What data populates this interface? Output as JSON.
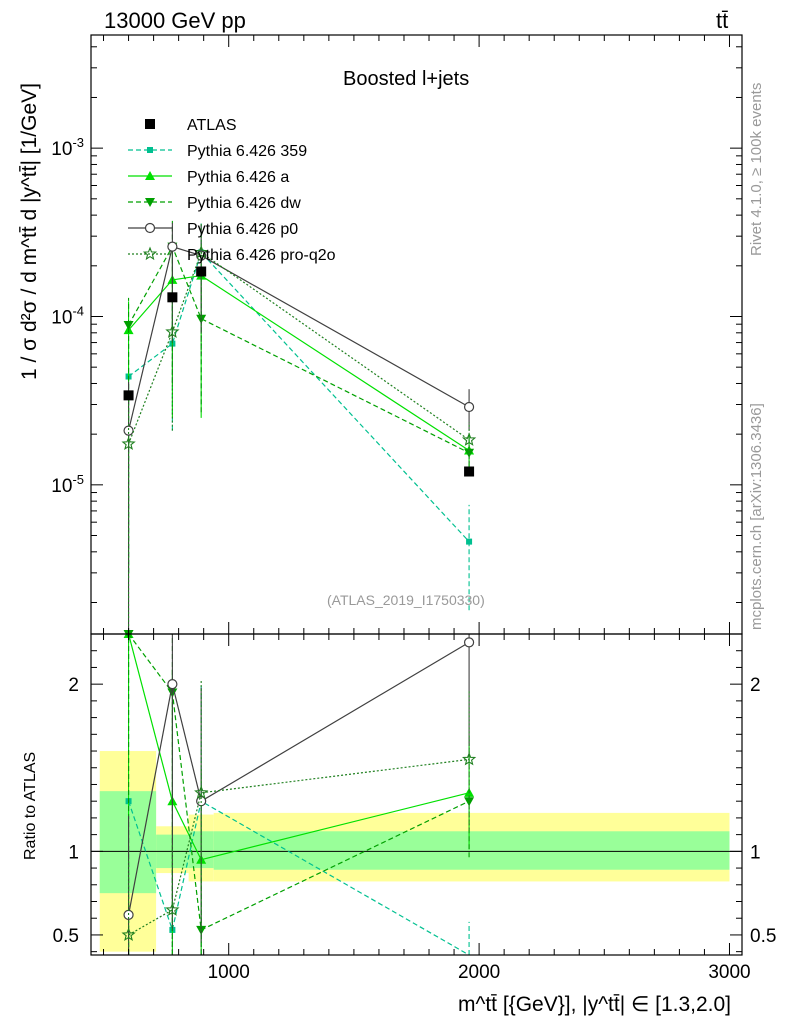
{
  "header": {
    "left": "13000 GeV pp",
    "right": "tt̄"
  },
  "side_labels": {
    "rivet": "Rivet 4.1.0, ≥ 100k events",
    "mcplots": "mcplots.cern.ch [arXiv:1306.3436]"
  },
  "chart_data": {
    "type": "scatter",
    "title": "Boosted l+jets",
    "analysis_id": "(ATLAS_2019_I1750330)",
    "xlabel": "m^tt̄ [{GeV}], |y^tt̄| ∈ [1.3,2.0]",
    "ylabel": "1 / σ d²σ / d m^tt̄ d |y^tt̄| [1/GeV]",
    "ratio_ylabel": "Ratio to ATLAS",
    "x_scale": "linear",
    "xlim": [
      450,
      3050
    ],
    "x_ticks": [
      1000,
      2000,
      3000
    ],
    "main_y_scale": "log",
    "main_ylim": [
      1.3e-06,
      0.0047
    ],
    "main_y_tick_labels": [
      "10^-5",
      "10^-4",
      "10^-3"
    ],
    "ratio_ylim": [
      0.38,
      2.3
    ],
    "ratio_y_ticks": [
      0.5,
      1,
      2
    ],
    "legend_position": "top-left",
    "bins": [
      {
        "x": 600,
        "xlow": 485,
        "xhigh": 710
      },
      {
        "x": 775,
        "xlow": 710,
        "xhigh": 840
      },
      {
        "x": 890,
        "xlow": 840,
        "xhigh": 940
      },
      {
        "x": 1960,
        "xlow": 940,
        "xhigh": 3000
      }
    ],
    "reference": {
      "name": "ATLAS",
      "values": [
        3.4e-05,
        0.00013,
        0.000185,
        1.2e-05
      ],
      "ratio_band_stat": [
        [
          0.75,
          1.36
        ],
        [
          0.9,
          1.1
        ],
        [
          0.9,
          1.12
        ],
        [
          0.89,
          1.12
        ]
      ],
      "ratio_band_total": [
        [
          0.4,
          1.6
        ],
        [
          0.87,
          1.15
        ],
        [
          0.82,
          1.22
        ],
        [
          0.82,
          1.23
        ]
      ]
    },
    "series": [
      {
        "name": "Pythia 6.426 359",
        "color": "#00c090",
        "dash": "dashed",
        "marker": "square-small",
        "values": [
          4.4e-05,
          6.9e-05,
          0.00024,
          4.6e-06
        ],
        "yerr_low": [
          4.1e-05,
          4.8e-05,
          0.00021,
          2.8e-06
        ],
        "yerr_high": [
          4.4e-05,
          4.8e-05,
          0.00013,
          3e-06
        ],
        "ratio": [
          1.3,
          0.53,
          1.3,
          0.35
        ]
      },
      {
        "name": "Pythia 6.426 a",
        "color": "#00e000",
        "dash": "solid",
        "marker": "triangle-up",
        "values": [
          8.3e-05,
          0.000165,
          0.000175,
          1.6e-05
        ],
        "yerr_low": [
          8e-05,
          0.00014,
          0.00015,
          4e-06
        ],
        "yerr_high": [
          4e-05,
          0.0001,
          0.0001,
          4e-06
        ],
        "ratio": [
          2.3,
          1.3,
          0.95,
          1.35
        ]
      },
      {
        "name": "Pythia 6.426 dw",
        "color": "#00a000",
        "dash": "dashed",
        "marker": "triangle-down",
        "values": [
          8.9e-05,
          0.00026,
          9.7e-05,
          1.55e-05
        ],
        "yerr_low": [
          8.6e-05,
          0.00022,
          7e-05,
          4e-06
        ],
        "yerr_high": [
          4e-05,
          0.00011,
          6e-05,
          4e-06
        ],
        "ratio": [
          2.3,
          1.95,
          0.53,
          1.3
        ]
      },
      {
        "name": "Pythia 6.426 p0",
        "color": "#404040",
        "dash": "solid",
        "marker": "circle-open",
        "values": [
          2.1e-05,
          0.00026,
          0.00023,
          2.9e-05
        ],
        "yerr_low": [
          2e-05,
          0.00019,
          0.00015,
          8e-06
        ],
        "yerr_high": [
          2e-05,
          0.0001,
          0.00012,
          8e-06
        ],
        "ratio": [
          0.62,
          2.0,
          1.3,
          2.25
        ]
      },
      {
        "name": "Pythia 6.426 pro-q2o",
        "color": "#208020",
        "dash": "dotted",
        "marker": "star",
        "values": [
          1.75e-05,
          8.1e-05,
          0.00024,
          1.85e-05
        ],
        "yerr_low": [
          1.7e-05,
          6e-05,
          0.00018,
          5e-06
        ],
        "yerr_high": [
          1.6e-05,
          5e-05,
          0.00012,
          5e-06
        ],
        "ratio": [
          0.5,
          0.65,
          1.35,
          1.55
        ]
      }
    ]
  }
}
